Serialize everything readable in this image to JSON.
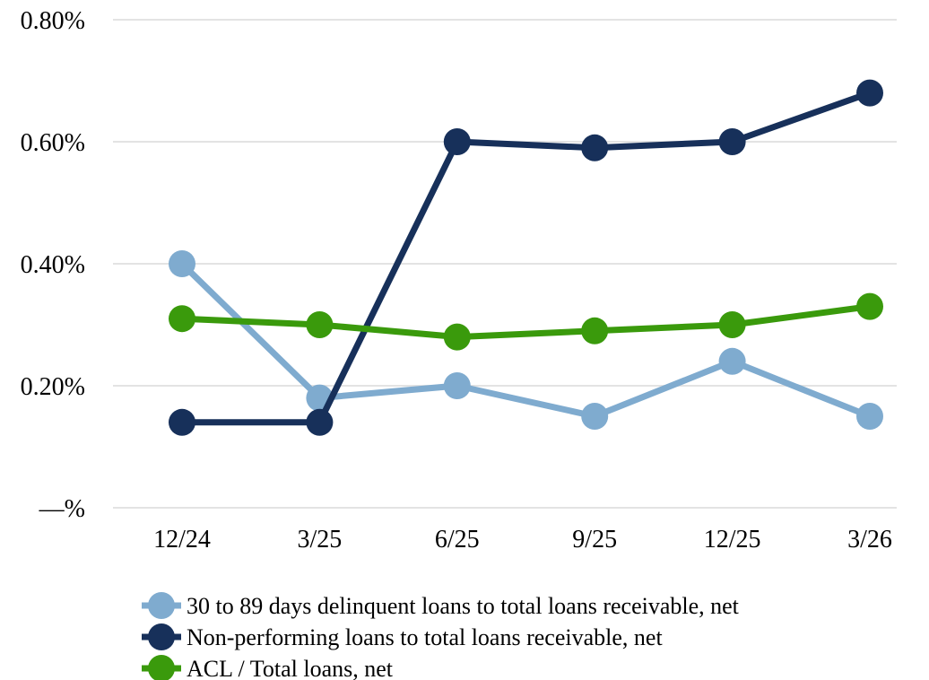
{
  "chart_data": {
    "type": "line",
    "title": "",
    "xlabel": "",
    "ylabel": "",
    "categories": [
      "12/24",
      "3/25",
      "6/25",
      "9/25",
      "12/25",
      "3/26"
    ],
    "ylim": [
      0,
      0.8
    ],
    "yticks": [
      0,
      0.2,
      0.4,
      0.6,
      0.8
    ],
    "ytick_labels": [
      "—%",
      "0.20%",
      "0.40%",
      "0.60%",
      "0.80%"
    ],
    "grid": "horizontal",
    "legend_position": "bottom",
    "series": [
      {
        "name": "30 to 89 days delinquent loans to total loans receivable, net",
        "color": "#7FABCF",
        "values": [
          0.4,
          0.18,
          0.2,
          0.15,
          0.24,
          0.15
        ]
      },
      {
        "name": "Non-performing loans to total loans receivable, net",
        "color": "#17305A",
        "values": [
          0.14,
          0.14,
          0.6,
          0.59,
          0.6,
          0.68
        ]
      },
      {
        "name": "ACL / Total loans, net",
        "color": "#3A9A0C",
        "values": [
          0.31,
          0.3,
          0.28,
          0.29,
          0.3,
          0.33
        ]
      }
    ],
    "gridline_color": "#E3E3E3"
  }
}
